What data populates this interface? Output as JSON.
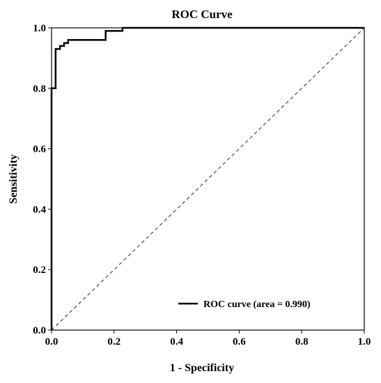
{
  "chart_data": {
    "type": "line",
    "title": "ROC Curve",
    "xlabel": "1 - Specificity",
    "ylabel": "Sensitivity",
    "xlim": [
      0.0,
      1.0
    ],
    "ylim": [
      0.0,
      1.0
    ],
    "xticks": [
      "0.0",
      "0.2",
      "0.4",
      "0.6",
      "0.8",
      "1.0"
    ],
    "yticks": [
      "0.0",
      "0.2",
      "0.4",
      "0.6",
      "0.8",
      "1.0"
    ],
    "grid": false,
    "legend_position": "bottom-right",
    "series": [
      {
        "name": "ROC curve (area = 0.990)",
        "style": "solid",
        "color": "#000000",
        "x": [
          0.0,
          0.0,
          0.0,
          0.013,
          0.013,
          0.027,
          0.027,
          0.04,
          0.04,
          0.053,
          0.053,
          0.173,
          0.173,
          0.227,
          0.227,
          1.0
        ],
        "y": [
          0.0,
          0.42,
          0.8,
          0.8,
          0.93,
          0.93,
          0.94,
          0.94,
          0.95,
          0.95,
          0.96,
          0.96,
          0.99,
          0.99,
          1.0,
          1.0
        ]
      },
      {
        "name": "",
        "style": "dashed",
        "color": "#555555",
        "x": [
          0.0,
          1.0
        ],
        "y": [
          0.0,
          1.0
        ]
      }
    ]
  }
}
